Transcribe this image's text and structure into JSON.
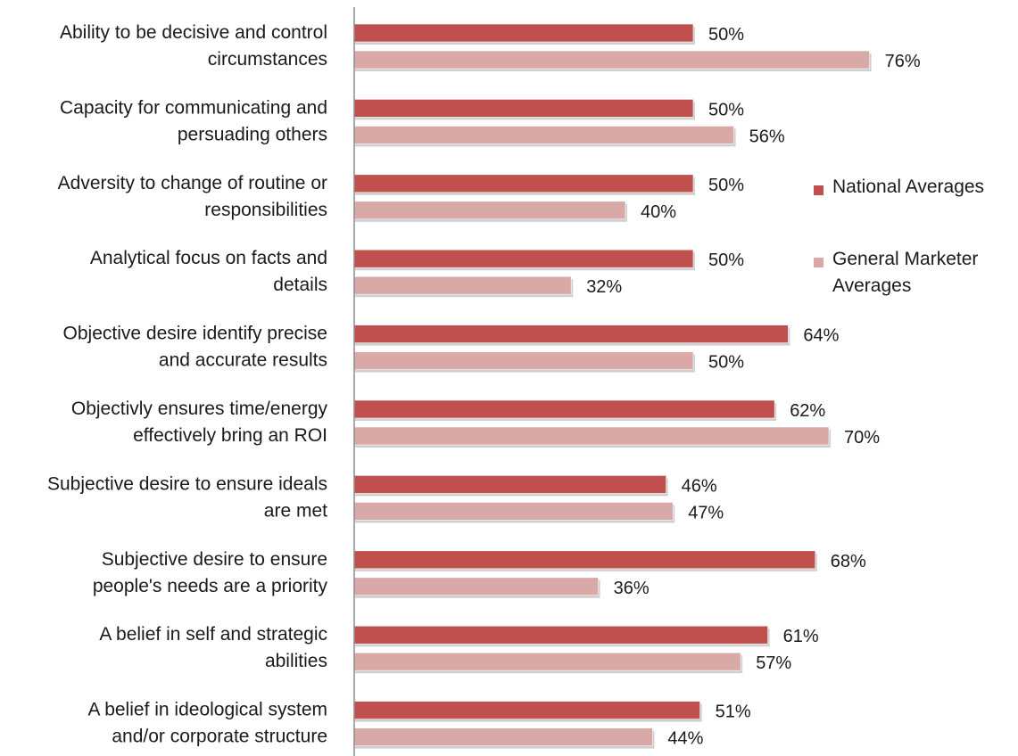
{
  "chart_data": {
    "type": "bar",
    "orientation": "horizontal",
    "categories": [
      [
        "Ability to be decisive and control",
        "circumstances"
      ],
      [
        "Capacity for communicating and",
        "persuading others"
      ],
      [
        "Adversity to change of routine or",
        "responsibilities"
      ],
      [
        "Analytical focus on facts and",
        "details"
      ],
      [
        "Objective desire identify precise",
        "and accurate results"
      ],
      [
        "Objectivly ensures time/energy",
        "effectively bring an ROI"
      ],
      [
        "Subjective desire to ensure ideals",
        "are met"
      ],
      [
        "Subjective desire to ensure",
        "people's needs are a priority"
      ],
      [
        "A belief in self and strategic",
        "abilities"
      ],
      [
        "A belief in ideological system",
        "and/or corporate structure"
      ]
    ],
    "series": [
      {
        "name": "National  Averages",
        "color": "#c0504d",
        "values": [
          50,
          50,
          50,
          50,
          64,
          62,
          46,
          68,
          61,
          51
        ],
        "labels": [
          "50%",
          "50%",
          "50%",
          "50%",
          "64%",
          "62%",
          "46%",
          "68%",
          "61%",
          "51%"
        ]
      },
      {
        "name": "General Marketer Averages",
        "name_lines": [
          "General Marketer",
          "Averages"
        ],
        "color": "#d9a9a8",
        "values": [
          76,
          56,
          40,
          32,
          50,
          70,
          47,
          36,
          57,
          44
        ],
        "labels": [
          "76%",
          "56%",
          "40%",
          "32%",
          "50%",
          "70%",
          "47%",
          "36%",
          "57%",
          "44%"
        ]
      }
    ],
    "xlim": [
      0,
      100
    ],
    "grid": false,
    "legend_position": "right"
  }
}
